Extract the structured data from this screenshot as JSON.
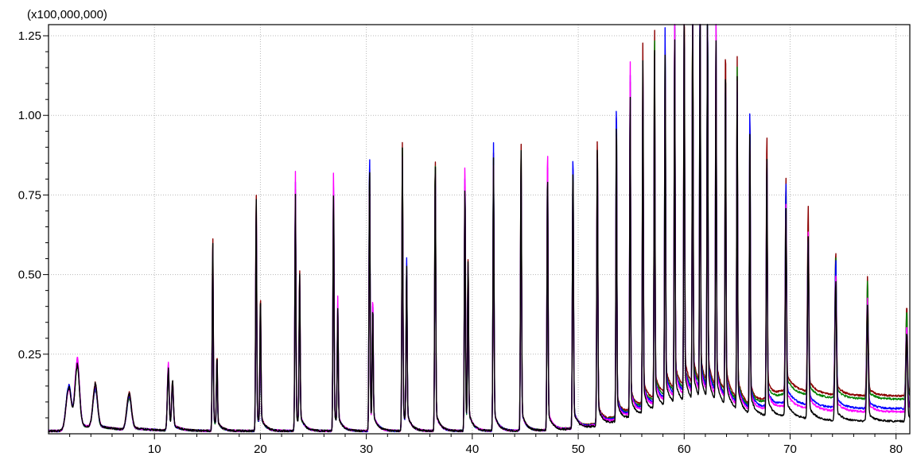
{
  "chart_data": {
    "type": "line",
    "title": "",
    "xlabel": "",
    "ylabel": "",
    "y_scale_label": "(x100,000,000)",
    "xlim": [
      0,
      81.3
    ],
    "ylim": [
      0,
      1.285
    ],
    "grid": true,
    "x_ticks": [
      10,
      20,
      30,
      40,
      50,
      60,
      70,
      80
    ],
    "x_tick_labels": [
      "10",
      "20",
      "30",
      "40",
      "50",
      "60",
      "70",
      "80"
    ],
    "y_ticks": [
      0.25,
      0.5,
      0.75,
      1.0,
      1.25
    ],
    "y_tick_labels": [
      "0.25",
      "0.50",
      "0.75",
      "1.00",
      "1.25"
    ],
    "peaks": [
      {
        "x": 1.9,
        "y": 0.14,
        "w": 0.35
      },
      {
        "x": 2.7,
        "y": 0.21,
        "w": 0.3
      },
      {
        "x": 4.4,
        "y": 0.13,
        "w": 0.3
      },
      {
        "x": 7.6,
        "y": 0.11,
        "w": 0.3
      },
      {
        "x": 11.3,
        "y": 0.2,
        "w": 0.12
      },
      {
        "x": 11.7,
        "y": 0.14,
        "w": 0.12
      },
      {
        "x": 15.5,
        "y": 0.57,
        "w": 0.07
      },
      {
        "x": 15.9,
        "y": 0.21,
        "w": 0.07
      },
      {
        "x": 19.6,
        "y": 0.7,
        "w": 0.07
      },
      {
        "x": 20.0,
        "y": 0.38,
        "w": 0.07
      },
      {
        "x": 23.3,
        "y": 0.76,
        "w": 0.07
      },
      {
        "x": 23.7,
        "y": 0.45,
        "w": 0.07
      },
      {
        "x": 26.9,
        "y": 0.81,
        "w": 0.07
      },
      {
        "x": 27.3,
        "y": 0.37,
        "w": 0.07
      },
      {
        "x": 30.3,
        "y": 0.85,
        "w": 0.07
      },
      {
        "x": 30.6,
        "y": 0.38,
        "w": 0.07
      },
      {
        "x": 33.4,
        "y": 0.85,
        "w": 0.07
      },
      {
        "x": 33.8,
        "y": 0.49,
        "w": 0.07
      },
      {
        "x": 36.5,
        "y": 0.84,
        "w": 0.07
      },
      {
        "x": 39.3,
        "y": 0.83,
        "w": 0.07
      },
      {
        "x": 39.6,
        "y": 0.5,
        "w": 0.07
      },
      {
        "x": 42.0,
        "y": 0.85,
        "w": 0.07
      },
      {
        "x": 44.6,
        "y": 0.87,
        "w": 0.07
      },
      {
        "x": 47.1,
        "y": 0.86,
        "w": 0.07
      },
      {
        "x": 49.5,
        "y": 0.86,
        "w": 0.07
      },
      {
        "x": 51.8,
        "y": 0.87,
        "w": 0.07
      },
      {
        "x": 53.6,
        "y": 1.0,
        "w": 0.06
      },
      {
        "x": 54.9,
        "y": 1.06,
        "w": 0.06
      },
      {
        "x": 56.1,
        "y": 1.11,
        "w": 0.06
      },
      {
        "x": 57.2,
        "y": 1.14,
        "w": 0.06
      },
      {
        "x": 58.2,
        "y": 1.17,
        "w": 0.06
      },
      {
        "x": 59.1,
        "y": 1.2,
        "w": 0.06
      },
      {
        "x": 60.0,
        "y": 1.23,
        "w": 0.06
      },
      {
        "x": 60.8,
        "y": 1.28,
        "w": 0.06
      },
      {
        "x": 61.5,
        "y": 1.28,
        "w": 0.06
      },
      {
        "x": 62.2,
        "y": 1.26,
        "w": 0.06
      },
      {
        "x": 63.0,
        "y": 1.17,
        "w": 0.06
      },
      {
        "x": 63.9,
        "y": 1.06,
        "w": 0.06
      },
      {
        "x": 65.0,
        "y": 1.01,
        "w": 0.06
      },
      {
        "x": 66.2,
        "y": 0.95,
        "w": 0.06
      },
      {
        "x": 67.8,
        "y": 0.79,
        "w": 0.07
      },
      {
        "x": 69.6,
        "y": 0.66,
        "w": 0.08
      },
      {
        "x": 71.7,
        "y": 0.54,
        "w": 0.09
      },
      {
        "x": 74.3,
        "y": 0.45,
        "w": 0.1
      },
      {
        "x": 77.3,
        "y": 0.35,
        "w": 0.1
      },
      {
        "x": 81.0,
        "y": 0.28,
        "w": 0.1
      }
    ],
    "series": [
      {
        "color": "#8b0000",
        "peak_scale": 1.02,
        "hump": 0.14,
        "tail": 0.11
      },
      {
        "color": "#008000",
        "peak_scale": 0.97,
        "hump": 0.13,
        "tail": 0.1
      },
      {
        "color": "#0000ff",
        "peak_scale": 0.99,
        "hump": 0.12,
        "tail": 0.07
      },
      {
        "color": "#ff00ff",
        "peak_scale": 1.0,
        "hump": 0.11,
        "tail": 0.06
      },
      {
        "color": "#000000",
        "peak_scale": 1.0,
        "hump": 0.09,
        "tail": 0.03
      }
    ]
  }
}
